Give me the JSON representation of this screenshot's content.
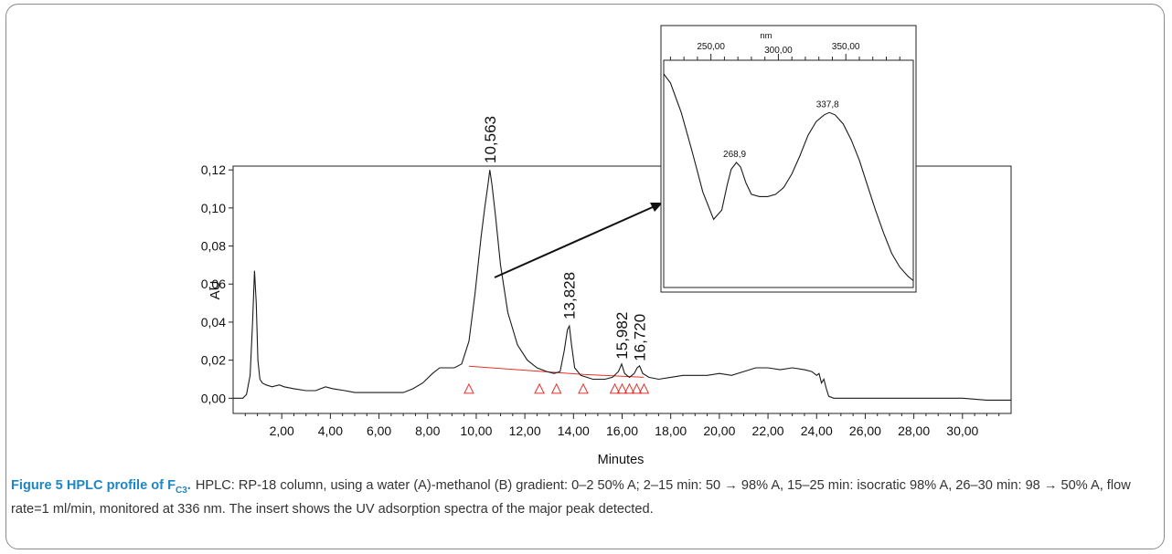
{
  "chart_data": [
    {
      "type": "line",
      "xlabel": "Minutes",
      "ylabel": "AU",
      "xlim": [
        0,
        32
      ],
      "ylim": [
        -0.008,
        0.122
      ],
      "x_ticks": [
        "2,00",
        "4,00",
        "6,00",
        "8,00",
        "10,00",
        "12,00",
        "14,00",
        "16,00",
        "18,00",
        "20,00",
        "22,00",
        "24,00",
        "26,00",
        "28,00",
        "30,00"
      ],
      "y_ticks": [
        "0,00",
        "0,02",
        "0,04",
        "0,06",
        "0,08",
        "0,10",
        "0,12"
      ],
      "grid": false,
      "series": [
        {
          "x": [
            0.0,
            0.4,
            0.55,
            0.7,
            0.8,
            0.88,
            0.95,
            1.02,
            1.1,
            1.2,
            1.35,
            1.6,
            1.9,
            2.1,
            2.5,
            3.0,
            3.4,
            3.6,
            3.8,
            4.1,
            4.6,
            5.0,
            5.5,
            6.0,
            6.5,
            7.0,
            7.4,
            7.8,
            8.2,
            8.5,
            8.8,
            9.1,
            9.4,
            9.7,
            9.95,
            10.2,
            10.35,
            10.48,
            10.56,
            10.65,
            10.8,
            11.0,
            11.3,
            11.7,
            12.1,
            12.5,
            12.9,
            13.2,
            13.45,
            13.62,
            13.75,
            13.83,
            13.92,
            14.05,
            14.3,
            14.8,
            15.3,
            15.6,
            15.85,
            15.98,
            16.1,
            16.3,
            16.5,
            16.62,
            16.72,
            16.85,
            17.1,
            17.5,
            18.0,
            18.5,
            19.0,
            19.5,
            20.0,
            20.5,
            21.0,
            21.5,
            22.0,
            22.5,
            23.0,
            23.5,
            23.8,
            24.0,
            24.1,
            24.2,
            24.3,
            24.4,
            24.5,
            24.7,
            25.0,
            26.0,
            27.0,
            28.0,
            29.0,
            30.0,
            31.0,
            32.0
          ],
          "y": [
            0.0,
            0.0,
            0.002,
            0.012,
            0.04,
            0.067,
            0.05,
            0.02,
            0.01,
            0.008,
            0.007,
            0.006,
            0.007,
            0.006,
            0.005,
            0.004,
            0.004,
            0.005,
            0.006,
            0.005,
            0.004,
            0.003,
            0.003,
            0.003,
            0.003,
            0.003,
            0.005,
            0.008,
            0.013,
            0.016,
            0.016,
            0.016,
            0.018,
            0.03,
            0.055,
            0.085,
            0.1,
            0.112,
            0.12,
            0.112,
            0.095,
            0.07,
            0.045,
            0.028,
            0.02,
            0.016,
            0.014,
            0.013,
            0.014,
            0.025,
            0.036,
            0.038,
            0.028,
            0.016,
            0.012,
            0.01,
            0.01,
            0.011,
            0.014,
            0.018,
            0.013,
            0.011,
            0.013,
            0.016,
            0.017,
            0.013,
            0.011,
            0.01,
            0.011,
            0.012,
            0.012,
            0.012,
            0.013,
            0.012,
            0.014,
            0.016,
            0.016,
            0.015,
            0.016,
            0.015,
            0.014,
            0.012,
            0.013,
            0.008,
            0.01,
            0.005,
            0.001,
            0.0,
            0.0,
            0.0,
            0.0,
            0.0,
            0.0,
            0.0,
            -0.001,
            -0.001
          ]
        }
      ],
      "peak_labels": [
        {
          "x": 10.563,
          "label": "10,563"
        },
        {
          "x": 13.828,
          "label": "13,828"
        },
        {
          "x": 15.982,
          "label": "15,982"
        },
        {
          "x": 16.72,
          "label": "16,720"
        }
      ],
      "baseline": {
        "color": "#e8302a",
        "markers": [
          9.7,
          12.6,
          13.3,
          14.4,
          15.7,
          16.0,
          16.3,
          16.6,
          16.9
        ]
      },
      "annotation": "arrow from major peak (10,563) to inset UV spectrum"
    },
    {
      "type": "line",
      "xlabel": "nm",
      "x_ticks": [
        "250,00",
        "300,00",
        "350,00"
      ],
      "xlim": [
        215,
        400
      ],
      "ylim": [
        0,
        1
      ],
      "grid": false,
      "series": [
        {
          "x": [
            215,
            220,
            228,
            236,
            244,
            252,
            258,
            262,
            265,
            268.9,
            272,
            276,
            280,
            286,
            292,
            298,
            304,
            310,
            316,
            322,
            328,
            334,
            337.8,
            342,
            348,
            354,
            360,
            366,
            372,
            378,
            384,
            390,
            396,
            400
          ],
          "y": [
            0.94,
            0.9,
            0.77,
            0.6,
            0.42,
            0.3,
            0.34,
            0.45,
            0.52,
            0.55,
            0.53,
            0.46,
            0.41,
            0.4,
            0.4,
            0.41,
            0.44,
            0.5,
            0.58,
            0.67,
            0.73,
            0.76,
            0.77,
            0.76,
            0.72,
            0.65,
            0.56,
            0.45,
            0.34,
            0.24,
            0.15,
            0.09,
            0.05,
            0.03
          ]
        }
      ],
      "peak_labels": [
        {
          "x": 268.9,
          "label": "268,9"
        },
        {
          "x": 337.8,
          "label": "337,8"
        }
      ]
    }
  ],
  "caption": {
    "figure_label": "Figure 5 HPLC profile of F",
    "figure_label_sub": "C3",
    "figure_label_end": ".",
    "text": "HPLC: RP-18 column, using a water (A)-methanol (B) gradient: 0–2 50% A; 2–15 min: 50 → 98% A, 15–25 min: isocratic 98% A, 26–30 min: 98 → 50% A, flow rate=1 ml/min, monitored at 336 nm. The insert shows the UV adsorption spectra of the major peak detected."
  },
  "colors": {
    "trace": "#1a1a1a",
    "baseline": "#e8302a",
    "caption_label": "#1e86c3",
    "caption_text": "#333333"
  }
}
